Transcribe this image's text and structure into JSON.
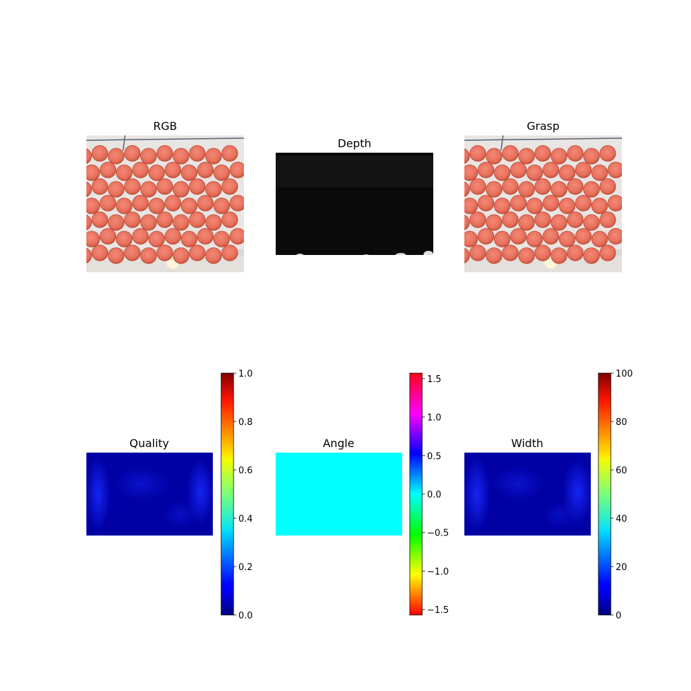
{
  "panels": {
    "rgb": {
      "title": "RGB"
    },
    "depth": {
      "title": "Depth"
    },
    "grasp": {
      "title": "Grasp"
    }
  },
  "chart_data": [
    {
      "type": "heatmap",
      "title": "Quality",
      "colormap": "jet",
      "colorbar": {
        "range": [
          0.0,
          1.0
        ],
        "ticks": [
          0.0,
          0.2,
          0.4,
          0.6,
          0.8,
          1.0
        ],
        "tick_labels": [
          "0.0",
          "0.2",
          "0.4",
          "0.6",
          "0.8",
          "1.0"
        ]
      },
      "values_approx": {
        "min": 0.02,
        "max": 0.2
      }
    },
    {
      "type": "heatmap",
      "title": "Angle",
      "colormap": "hsv",
      "colorbar": {
        "range": [
          -1.5708,
          1.5708
        ],
        "ticks": [
          -1.5,
          -1.0,
          -0.5,
          0.0,
          0.5,
          1.0,
          1.5
        ],
        "tick_labels": [
          "−1.5",
          "−1.0",
          "−0.5",
          "0.0",
          "0.5",
          "1.0",
          "1.5"
        ]
      },
      "values_approx": {
        "min": 0.0,
        "max": 0.0
      }
    },
    {
      "type": "heatmap",
      "title": "Width",
      "colormap": "jet",
      "colorbar": {
        "range": [
          0,
          100
        ],
        "ticks": [
          0,
          20,
          40,
          60,
          80,
          100
        ],
        "tick_labels": [
          "0",
          "20",
          "40",
          "60",
          "80",
          "100"
        ]
      },
      "values_approx": {
        "min": 2,
        "max": 20
      }
    }
  ]
}
